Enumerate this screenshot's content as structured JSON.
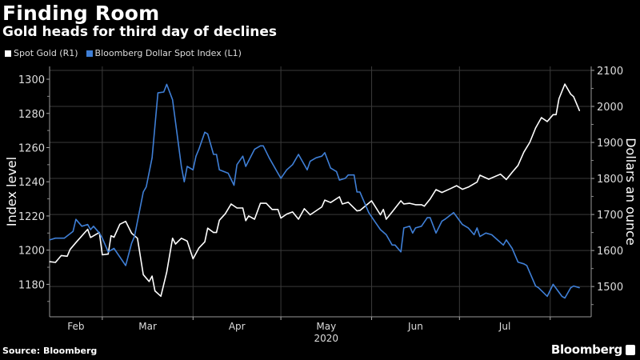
{
  "header": {
    "title": "Finding Room",
    "subtitle": "Gold heads for third day of declines"
  },
  "footer": {
    "source": "Source: Bloomberg",
    "logo": "Bloomberg"
  },
  "chart_data": {
    "type": "line",
    "title": "Finding Room",
    "subtitle": "Gold heads for third day of declines",
    "xlabel": "2020",
    "x_range": [
      "2020-02-12",
      "2020-08-15"
    ],
    "x_tick_labels": [
      "Feb",
      "Mar",
      "Apr",
      "May",
      "Jun",
      "Jul"
    ],
    "y_left": {
      "label": "Index level",
      "range": [
        1161,
        1307.5
      ],
      "ticks": [
        1180,
        1200,
        1220,
        1240,
        1260,
        1280,
        1300
      ]
    },
    "y_right": {
      "label": "Dollars an ounce",
      "range": [
        1416,
        2111
      ],
      "ticks": [
        1500,
        1600,
        1700,
        1800,
        1900,
        2000,
        2100
      ]
    },
    "grid": true,
    "legend_position": "top-left",
    "series": [
      {
        "name": "Spot Gold (R1)",
        "axis": "right",
        "color": "#ffffff",
        "points": [
          [
            "2020-02-12",
            1569
          ],
          [
            "2020-02-14",
            1567
          ],
          [
            "2020-02-16",
            1586
          ],
          [
            "2020-02-18",
            1584
          ],
          [
            "2020-02-19",
            1603
          ],
          [
            "2020-02-21",
            1622
          ],
          [
            "2020-02-25",
            1659
          ],
          [
            "2020-02-26",
            1636
          ],
          [
            "2020-02-29",
            1650
          ],
          [
            "2020-03-01",
            1588
          ],
          [
            "2020-03-03",
            1590
          ],
          [
            "2020-03-04",
            1641
          ],
          [
            "2020-03-05",
            1637
          ],
          [
            "2020-03-07",
            1673
          ],
          [
            "2020-03-09",
            1681
          ],
          [
            "2020-03-11",
            1648
          ],
          [
            "2020-03-13",
            1634
          ],
          [
            "2020-03-15",
            1533
          ],
          [
            "2020-03-17",
            1514
          ],
          [
            "2020-03-18",
            1529
          ],
          [
            "2020-03-19",
            1488
          ],
          [
            "2020-03-21",
            1473
          ],
          [
            "2020-03-23",
            1540
          ],
          [
            "2020-03-25",
            1634
          ],
          [
            "2020-03-26",
            1618
          ],
          [
            "2020-03-28",
            1634
          ],
          [
            "2020-03-30",
            1626
          ],
          [
            "2020-04-01",
            1577
          ],
          [
            "2020-04-03",
            1607
          ],
          [
            "2020-04-05",
            1624
          ],
          [
            "2020-04-06",
            1662
          ],
          [
            "2020-04-08",
            1650
          ],
          [
            "2020-04-09",
            1650
          ],
          [
            "2020-04-10",
            1684
          ],
          [
            "2020-04-12",
            1702
          ],
          [
            "2020-04-14",
            1729
          ],
          [
            "2020-04-16",
            1718
          ],
          [
            "2020-04-18",
            1718
          ],
          [
            "2020-04-19",
            1683
          ],
          [
            "2020-04-20",
            1696
          ],
          [
            "2020-04-22",
            1687
          ],
          [
            "2020-04-24",
            1731
          ],
          [
            "2020-04-26",
            1731
          ],
          [
            "2020-04-28",
            1714
          ],
          [
            "2020-04-30",
            1714
          ],
          [
            "2020-05-01",
            1690
          ],
          [
            "2020-05-03",
            1701
          ],
          [
            "2020-05-05",
            1707
          ],
          [
            "2020-05-07",
            1687
          ],
          [
            "2020-05-09",
            1716
          ],
          [
            "2020-05-11",
            1699
          ],
          [
            "2020-05-15",
            1721
          ],
          [
            "2020-05-16",
            1740
          ],
          [
            "2020-05-18",
            1733
          ],
          [
            "2020-05-21",
            1749
          ],
          [
            "2020-05-22",
            1729
          ],
          [
            "2020-05-24",
            1734
          ],
          [
            "2020-05-27",
            1710
          ],
          [
            "2020-05-28",
            1711
          ],
          [
            "2020-06-01",
            1738
          ],
          [
            "2020-06-04",
            1699
          ],
          [
            "2020-06-05",
            1714
          ],
          [
            "2020-06-06",
            1687
          ],
          [
            "2020-06-08",
            1707
          ],
          [
            "2020-06-11",
            1738
          ],
          [
            "2020-06-12",
            1729
          ],
          [
            "2020-06-14",
            1731
          ],
          [
            "2020-06-16",
            1727
          ],
          [
            "2020-06-18",
            1727
          ],
          [
            "2020-06-19",
            1723
          ],
          [
            "2020-06-21",
            1743
          ],
          [
            "2020-06-23",
            1769
          ],
          [
            "2020-06-25",
            1761
          ],
          [
            "2020-06-28",
            1772
          ],
          [
            "2020-06-30",
            1780
          ],
          [
            "2020-07-02",
            1770
          ],
          [
            "2020-07-04",
            1776
          ],
          [
            "2020-07-07",
            1790
          ],
          [
            "2020-07-08",
            1809
          ],
          [
            "2020-07-11",
            1798
          ],
          [
            "2020-07-15",
            1812
          ],
          [
            "2020-07-17",
            1797
          ],
          [
            "2020-07-19",
            1817
          ],
          [
            "2020-07-21",
            1836
          ],
          [
            "2020-07-23",
            1873
          ],
          [
            "2020-07-25",
            1900
          ],
          [
            "2020-07-27",
            1940
          ],
          [
            "2020-07-29",
            1969
          ],
          [
            "2020-07-31",
            1958
          ],
          [
            "2020-08-02",
            1977
          ],
          [
            "2020-08-03",
            1977
          ],
          [
            "2020-08-04",
            2021
          ],
          [
            "2020-08-06",
            2062
          ],
          [
            "2020-08-08",
            2034
          ],
          [
            "2020-08-09",
            2027
          ],
          [
            "2020-08-11",
            1988
          ]
        ]
      },
      {
        "name": "Bloomberg Dollar Spot Index (L1)",
        "axis": "left",
        "color": "#3f7fd6",
        "points": [
          [
            "2020-02-12",
            1206
          ],
          [
            "2020-02-14",
            1207
          ],
          [
            "2020-02-17",
            1207
          ],
          [
            "2020-02-20",
            1211
          ],
          [
            "2020-02-21",
            1218
          ],
          [
            "2020-02-23",
            1214
          ],
          [
            "2020-02-25",
            1215
          ],
          [
            "2020-02-26",
            1212
          ],
          [
            "2020-02-27",
            1214
          ],
          [
            "2020-02-29",
            1210
          ],
          [
            "2020-03-01",
            1207
          ],
          [
            "2020-03-03",
            1199
          ],
          [
            "2020-03-05",
            1201
          ],
          [
            "2020-03-09",
            1191
          ],
          [
            "2020-03-11",
            1204
          ],
          [
            "2020-03-12",
            1208
          ],
          [
            "2020-03-15",
            1234
          ],
          [
            "2020-03-16",
            1237
          ],
          [
            "2020-03-18",
            1254
          ],
          [
            "2020-03-20",
            1292
          ],
          [
            "2020-03-22",
            1292.5
          ],
          [
            "2020-03-23",
            1297
          ],
          [
            "2020-03-25",
            1288
          ],
          [
            "2020-03-28",
            1249
          ],
          [
            "2020-03-29",
            1240
          ],
          [
            "2020-03-30",
            1249
          ],
          [
            "2020-04-01",
            1247
          ],
          [
            "2020-04-02",
            1255
          ],
          [
            "2020-04-03",
            1259
          ],
          [
            "2020-04-05",
            1269
          ],
          [
            "2020-04-06",
            1268
          ],
          [
            "2020-04-08",
            1256
          ],
          [
            "2020-04-09",
            1256
          ],
          [
            "2020-04-10",
            1247
          ],
          [
            "2020-04-13",
            1245
          ],
          [
            "2020-04-15",
            1238
          ],
          [
            "2020-04-16",
            1250
          ],
          [
            "2020-04-18",
            1255
          ],
          [
            "2020-04-19",
            1249
          ],
          [
            "2020-04-22",
            1259
          ],
          [
            "2020-04-24",
            1261
          ],
          [
            "2020-04-25",
            1261
          ],
          [
            "2020-04-27",
            1254
          ],
          [
            "2020-04-30",
            1245
          ],
          [
            "2020-05-01",
            1242
          ],
          [
            "2020-05-03",
            1247
          ],
          [
            "2020-05-05",
            1250
          ],
          [
            "2020-05-07",
            1256
          ],
          [
            "2020-05-10",
            1247
          ],
          [
            "2020-05-11",
            1252
          ],
          [
            "2020-05-13",
            1254
          ],
          [
            "2020-05-15",
            1255
          ],
          [
            "2020-05-16",
            1257
          ],
          [
            "2020-05-18",
            1248
          ],
          [
            "2020-05-20",
            1246
          ],
          [
            "2020-05-21",
            1241
          ],
          [
            "2020-05-23",
            1242
          ],
          [
            "2020-05-24",
            1244
          ],
          [
            "2020-05-26",
            1244
          ],
          [
            "2020-05-27",
            1234
          ],
          [
            "2020-05-28",
            1234
          ],
          [
            "2020-05-31",
            1222
          ],
          [
            "2020-06-02",
            1217
          ],
          [
            "2020-06-04",
            1212
          ],
          [
            "2020-06-06",
            1209
          ],
          [
            "2020-06-08",
            1203
          ],
          [
            "2020-06-09",
            1203
          ],
          [
            "2020-06-11",
            1199
          ],
          [
            "2020-06-12",
            1213
          ],
          [
            "2020-06-14",
            1214
          ],
          [
            "2020-06-15",
            1210
          ],
          [
            "2020-06-16",
            1213
          ],
          [
            "2020-06-18",
            1214
          ],
          [
            "2020-06-20",
            1219
          ],
          [
            "2020-06-21",
            1219
          ],
          [
            "2020-06-23",
            1210
          ],
          [
            "2020-06-25",
            1217
          ],
          [
            "2020-06-26",
            1218
          ],
          [
            "2020-06-29",
            1222
          ],
          [
            "2020-07-02",
            1215
          ],
          [
            "2020-07-04",
            1213
          ],
          [
            "2020-07-06",
            1209
          ],
          [
            "2020-07-07",
            1213
          ],
          [
            "2020-07-08",
            1208
          ],
          [
            "2020-07-10",
            1210
          ],
          [
            "2020-07-12",
            1209
          ],
          [
            "2020-07-14",
            1206
          ],
          [
            "2020-07-16",
            1203
          ],
          [
            "2020-07-17",
            1206
          ],
          [
            "2020-07-19",
            1201
          ],
          [
            "2020-07-21",
            1193
          ],
          [
            "2020-07-23",
            1192
          ],
          [
            "2020-07-24",
            1191
          ],
          [
            "2020-07-27",
            1179
          ],
          [
            "2020-07-28",
            1178
          ],
          [
            "2020-07-31",
            1173
          ],
          [
            "2020-08-02",
            1180
          ],
          [
            "2020-08-05",
            1173
          ],
          [
            "2020-08-06",
            1172
          ],
          [
            "2020-08-08",
            1178
          ],
          [
            "2020-08-09",
            1179
          ],
          [
            "2020-08-11",
            1178
          ]
        ]
      }
    ]
  }
}
